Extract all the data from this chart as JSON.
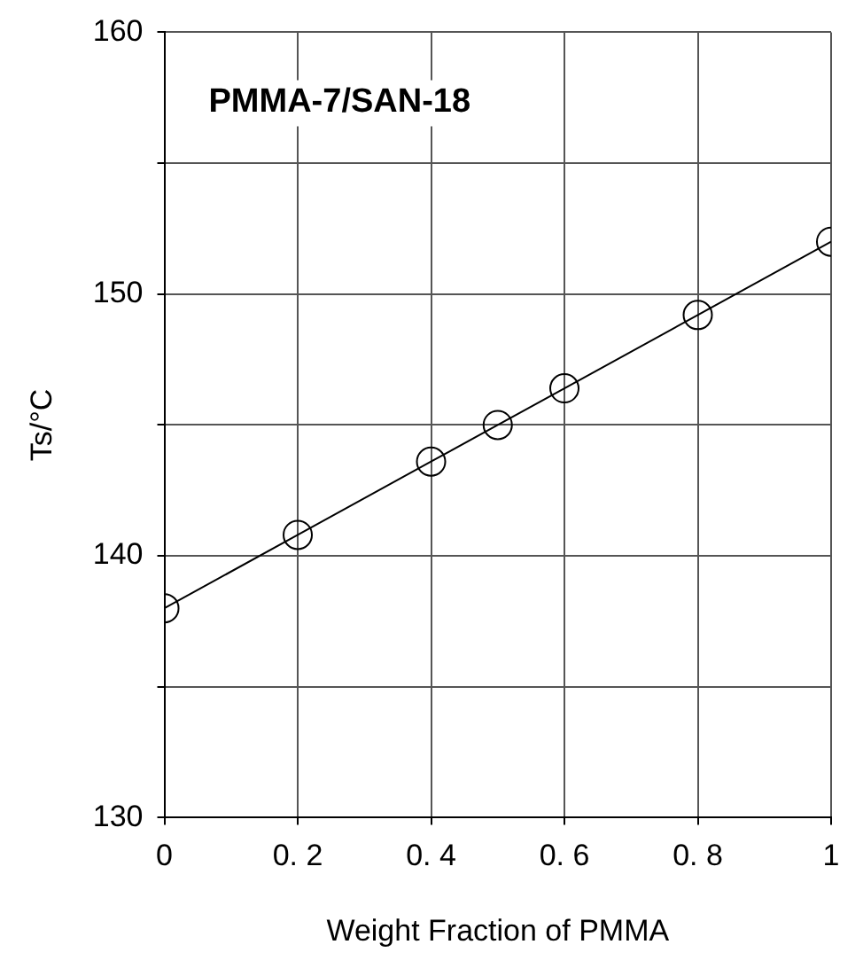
{
  "chart_data": {
    "type": "line",
    "xlabel": "Weight Fraction of PMMA",
    "ylabel": "Ts/°C",
    "annotations": [
      "PMMA-7/SAN-18"
    ],
    "x": [
      0,
      0.2,
      0.4,
      0.5,
      0.6,
      0.8,
      1
    ],
    "series": [
      {
        "color": "#000000",
        "values": [
          138.0,
          140.8,
          143.6,
          145.0,
          146.4,
          149.2,
          152.0
        ]
      }
    ],
    "xlim": [
      0,
      1
    ],
    "xticks": [
      0,
      {
        "value": 0.2,
        "label": "0. 2"
      },
      {
        "value": 0.4,
        "label": "0. 4"
      },
      {
        "value": 0.6,
        "label": "0. 6"
      },
      {
        "value": 0.8,
        "label": "0. 8"
      },
      1
    ],
    "ylim": [
      130,
      160
    ],
    "yticks": [
      130,
      {
        "value": 135,
        "label": null
      },
      140,
      {
        "value": 145,
        "label": null
      },
      150,
      {
        "value": 155,
        "label": null
      },
      160
    ],
    "grid": true,
    "legend": false,
    "marker": "circle",
    "line_style": "solid"
  }
}
